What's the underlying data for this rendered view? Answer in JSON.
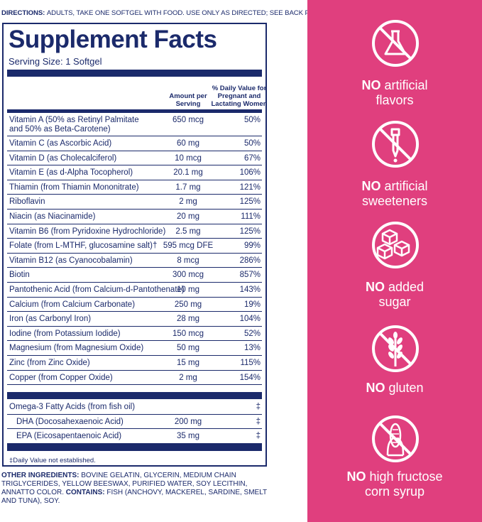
{
  "directions": {
    "lead": "DIRECTIONS:",
    "text": "ADULTS, TAKE ONE SOFTGEL WITH FOOD. USE ONLY AS DIRECTED; SEE BACK PANEL."
  },
  "facts": {
    "title": "Supplement Facts",
    "serving_size": "Serving Size: 1 Softgel",
    "header_amount": "Amount per Serving",
    "header_dv": "% Daily Value for Pregnant and Lactating Women",
    "nutrients": [
      {
        "name": "Vitamin A (50% as Retinyl Palmitate and 50% as Beta-Carotene)",
        "amount": "650 mcg",
        "dv": "50%"
      },
      {
        "name": "Vitamin C (as Ascorbic Acid)",
        "amount": "60 mg",
        "dv": "50%"
      },
      {
        "name": "Vitamin D (as Cholecalciferol)",
        "amount": "10 mcg",
        "dv": "67%"
      },
      {
        "name": "Vitamin E (as d-Alpha Tocopherol)",
        "amount": "20.1 mg",
        "dv": "106%"
      },
      {
        "name": "Thiamin (from Thiamin Mononitrate)",
        "amount": "1.7 mg",
        "dv": "121%"
      },
      {
        "name": "Riboflavin",
        "amount": "2 mg",
        "dv": "125%"
      },
      {
        "name": "Niacin (as Niacinamide)",
        "amount": "20 mg",
        "dv": "111%"
      },
      {
        "name": "Vitamin B6 (from Pyridoxine Hydrochloride)",
        "amount": "2.5 mg",
        "dv": "125%"
      },
      {
        "name": "Folate (from L-MTHF, glucosamine salt)†",
        "amount": "595 mcg DFE",
        "dv": "99%"
      },
      {
        "name": "Vitamin B12 (as Cyanocobalamin)",
        "amount": "8 mcg",
        "dv": "286%"
      },
      {
        "name": "Biotin",
        "amount": "300 mcg",
        "dv": "857%"
      },
      {
        "name": "Pantothenic Acid (from Calcium-d-Pantothenate)",
        "amount": "10 mg",
        "dv": "143%"
      },
      {
        "name": "Calcium (from Calcium Carbonate)",
        "amount": "250 mg",
        "dv": "19%"
      },
      {
        "name": "Iron (as Carbonyl Iron)",
        "amount": "28 mg",
        "dv": "104%"
      },
      {
        "name": "Iodine (from Potassium Iodide)",
        "amount": "150 mcg",
        "dv": "52%"
      },
      {
        "name": "Magnesium (from Magnesium Oxide)",
        "amount": "50 mg",
        "dv": "13%"
      },
      {
        "name": "Zinc (from Zinc Oxide)",
        "amount": "15 mg",
        "dv": "115%"
      },
      {
        "name": "Copper (from Copper Oxide)",
        "amount": "2 mg",
        "dv": "154%"
      }
    ],
    "omega": [
      {
        "name": "Omega-3 Fatty Acids (from fish oil)",
        "amount": "",
        "dv": "‡"
      },
      {
        "name": "DHA (Docosahexaenoic Acid)",
        "amount": "200 mg",
        "dv": "‡"
      },
      {
        "name": "EPA (Eicosapentaenoic Acid)",
        "amount": "35 mg",
        "dv": "‡"
      }
    ],
    "footnote": "‡Daily Value not established."
  },
  "ingredients": {
    "lead": "OTHER INGREDIENTS:",
    "text": "BOVINE GELATIN, GLYCERIN, MEDIUM CHAIN TRIGLYCERIDES, YELLOW BEESWAX, PURIFIED WATER, SOY LECITHIN, ANNATTO COLOR.",
    "contains_lead": "CONTAINS:",
    "contains_text": "FISH (ANCHOVY, MACKEREL, SARDINE, SMELT AND TUNA), SOY."
  },
  "claims": [
    {
      "bold": "NO",
      "line1": "artificial",
      "line2": "flavors",
      "icon": "flask-crossed-icon"
    },
    {
      "bold": "NO",
      "line1": "artificial",
      "line2": "sweeteners",
      "icon": "dropper-crossed-icon"
    },
    {
      "bold": "NO",
      "line1": "added",
      "line2": "sugar",
      "icon": "sugar-cubes-icon"
    },
    {
      "bold": "NO",
      "line1": "gluten",
      "line2": "",
      "icon": "wheat-crossed-icon"
    },
    {
      "bold": "NO",
      "line1": "high fructose",
      "line2": "corn syrup",
      "icon": "corn-crossed-icon"
    }
  ],
  "colors": {
    "navy": "#1b2a6b",
    "pink": "#e03f7e"
  }
}
